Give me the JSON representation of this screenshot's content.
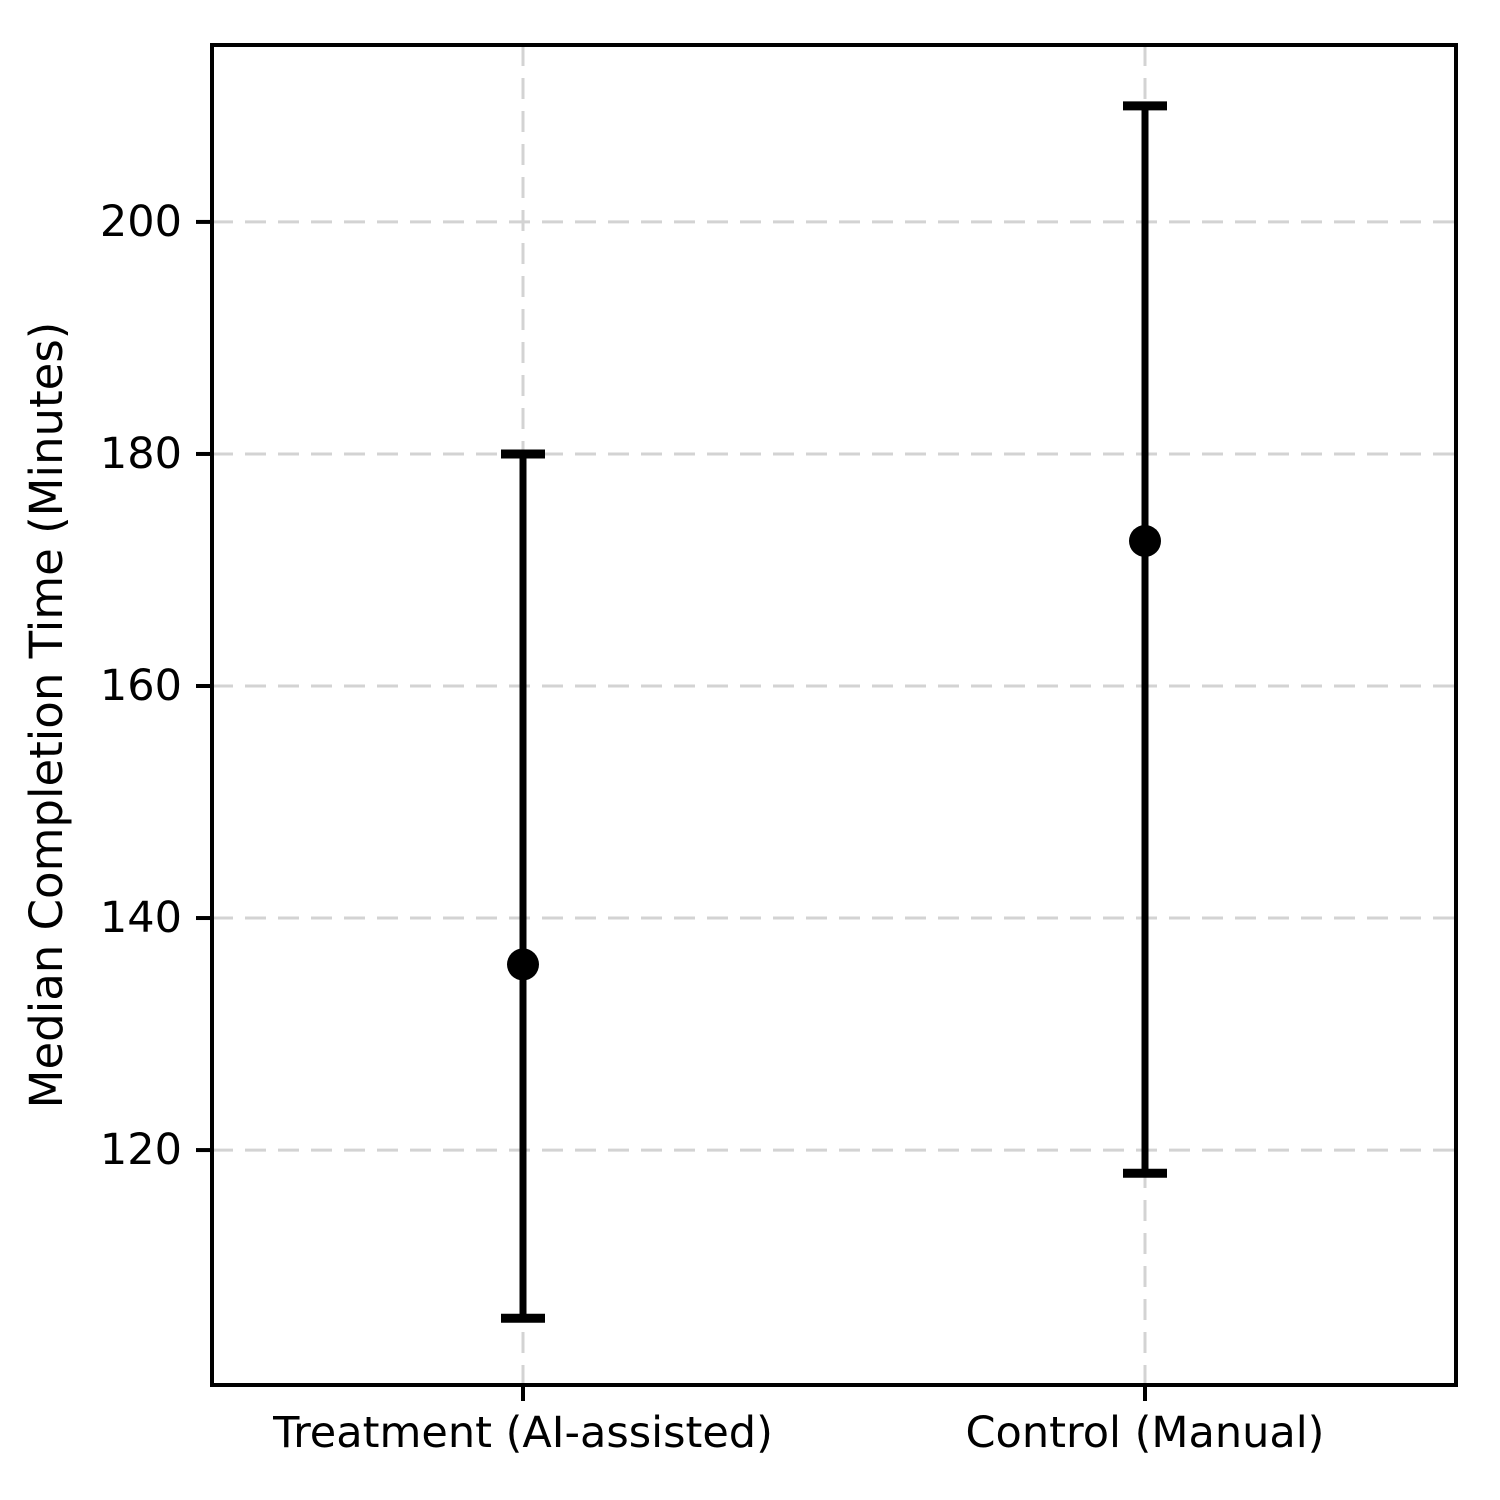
{
  "chart_data": {
    "type": "scatter",
    "subtype": "point-with-error-bars",
    "title": "",
    "xlabel": "",
    "ylabel": "Median Completion Time (Minutes)",
    "categories": [
      "Treatment (AI-assisted)",
      "Control (Manual)"
    ],
    "series": [
      {
        "name": "Median Completion Time",
        "values": [
          136,
          172.5
        ],
        "ci_low": [
          105.5,
          118
        ],
        "ci_high": [
          180,
          210
        ]
      }
    ],
    "yticks": [
      120,
      140,
      160,
      180,
      200
    ],
    "ylim": [
      99.75,
      215.25
    ],
    "grid": "dashed, horizontal at yticks and vertical at each category",
    "legend": "none",
    "colors": {
      "point": "#000000",
      "error_bar": "#000000",
      "grid": "#d3d3d3",
      "spine": "#000000",
      "background": "#ffffff"
    }
  }
}
